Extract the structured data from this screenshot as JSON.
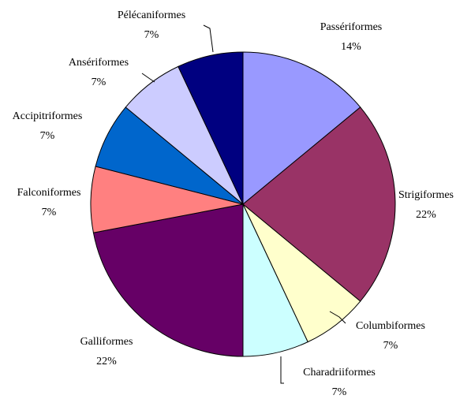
{
  "chart_data": {
    "type": "pie",
    "categories": [
      "Passériformes",
      "Strigiformes",
      "Columbiformes",
      "Charadriiformes",
      "Galliformes",
      "Falconiformes",
      "Accipitriformes",
      "Ansériformes",
      "Pélécaniformes"
    ],
    "values": [
      14,
      22,
      7,
      7,
      22,
      7,
      7,
      7,
      7
    ],
    "value_labels": [
      "14%",
      "22%",
      "7%",
      "7%",
      "22%",
      "7%",
      "7%",
      "7%",
      "7%"
    ],
    "colors": [
      "#9999ff",
      "#993366",
      "#ffffcc",
      "#ccffff",
      "#660066",
      "#ff8080",
      "#0066cc",
      "#ccccff",
      "#000080"
    ]
  }
}
